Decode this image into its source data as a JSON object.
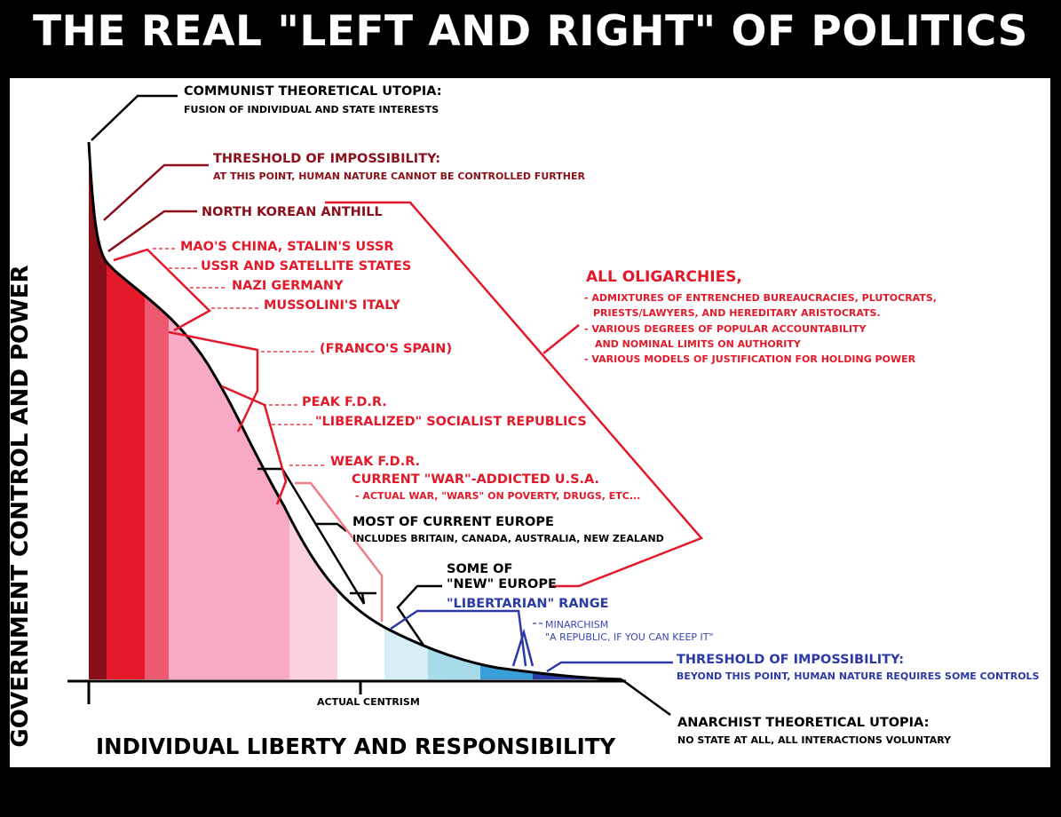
{
  "title": "THE REAL \"LEFT AND RIGHT\" OF POLITICS",
  "axes": {
    "y_label": "GOVERNMENT CONTROL AND POWER",
    "x_label": "INDIVIDUAL LIBERTY AND RESPONSIBILITY",
    "center_label": "ACTUAL CENTRISM"
  },
  "labels": {
    "communist_utopia": "COMMUNIST THEORETICAL UTOPIA:",
    "communist_utopia_sub": "FUSION OF INDIVIDUAL AND STATE INTERESTS",
    "threshold_top": "THRESHOLD OF IMPOSSIBILITY:",
    "threshold_top_sub": "AT THIS POINT, HUMAN NATURE CANNOT BE CONTROLLED FURTHER",
    "north_korea": "NORTH KOREAN ANTHILL",
    "mao_stalin": "MAO'S CHINA, STALIN'S USSR",
    "ussr_satellites": "USSR AND SATELLITE STATES",
    "nazi": "NAZI GERMANY",
    "mussolini": "MUSSOLINI'S ITALY",
    "franco": "(FRANCO'S SPAIN)",
    "peak_fdr": "PEAK F.D.R.",
    "liberalized": "\"LIBERALIZED\" SOCIALIST REPUBLICS",
    "weak_fdr": "WEAK F.D.R.",
    "war_usa": "CURRENT \"WAR\"-ADDICTED U.S.A.",
    "war_usa_sub": "- ACTUAL WAR, \"WARS\" ON POVERTY, DRUGS, ETC...",
    "europe": "MOST OF CURRENT EUROPE",
    "europe_sub": "INCLUDES BRITAIN, CANADA, AUSTRALIA, NEW ZEALAND",
    "new_europe_1": "SOME OF",
    "new_europe_2": "\"NEW\" EUROPE",
    "libertarian": "\"LIBERTARIAN\" RANGE",
    "minarchism": "MINARCHISM",
    "minarchism_sub": "\"A REPUBLIC, IF YOU CAN KEEP IT\"",
    "threshold_bottom": "THRESHOLD OF IMPOSSIBILITY:",
    "threshold_bottom_sub": "BEYOND THIS POINT, HUMAN NATURE REQUIRES SOME CONTROLS",
    "anarchist": "ANARCHIST THEORETICAL UTOPIA:",
    "anarchist_sub": "NO STATE AT ALL, ALL INTERACTIONS VOLUNTARY",
    "oligarchies": "ALL OLIGARCHIES,",
    "olig_1": "- ADMIXTURES OF ENTRENCHED BUREAUCRACIES, PLUTOCRATS,",
    "olig_2": "PRIESTS/LAWYERS, AND HEREDITARY ARISTOCRATS.",
    "olig_3": "- VARIOUS DEGREES OF POPULAR ACCOUNTABILITY",
    "olig_4": "AND NOMINAL LIMITS ON AUTHORITY",
    "olig_5": "- VARIOUS MODELS OF JUSTIFICATION FOR HOLDING POWER"
  },
  "colors": {
    "dark_red": "#8b0f18",
    "red": "#e3192a",
    "pink": "#f8a9c6",
    "light_blue": "#a6dcea",
    "blue": "#2b3aa6"
  }
}
